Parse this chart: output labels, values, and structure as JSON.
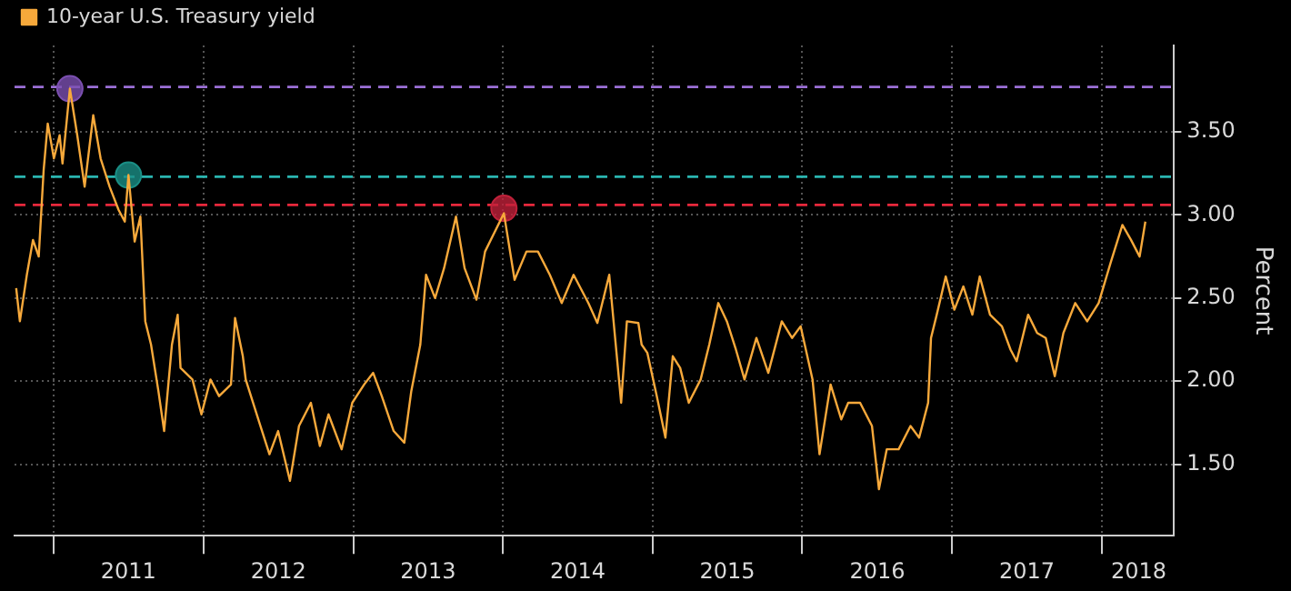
{
  "chart_data": {
    "type": "line",
    "ylabel": "Percent",
    "legend": "top left",
    "grid": true,
    "marker": "none",
    "line_style": "solid",
    "xlim": [
      "2010-09-27",
      "2018-06-26"
    ],
    "xticks": [
      {
        "value": "2011-01-01",
        "label": null
      },
      {
        "value": "2011-07-02",
        "label": "2011"
      },
      {
        "value": "2012-01-01",
        "label": null
      },
      {
        "value": "2012-07-02",
        "label": "2012"
      },
      {
        "value": "2013-01-01",
        "label": null
      },
      {
        "value": "2013-07-02",
        "label": "2013"
      },
      {
        "value": "2014-01-01",
        "label": null
      },
      {
        "value": "2014-07-02",
        "label": "2014"
      },
      {
        "value": "2015-01-01",
        "label": null
      },
      {
        "value": "2015-07-02",
        "label": "2015"
      },
      {
        "value": "2016-01-01",
        "label": null
      },
      {
        "value": "2016-07-02",
        "label": "2016"
      },
      {
        "value": "2017-01-01",
        "label": null
      },
      {
        "value": "2017-07-02",
        "label": "2017"
      },
      {
        "value": "2018-01-01",
        "label": null
      },
      {
        "value": "2018-04-01",
        "label": "2018"
      }
    ],
    "ylim": [
      1.07,
      4.02
    ],
    "yticks": [
      {
        "value": 1.5,
        "label": "1.50"
      },
      {
        "value": 2,
        "label": "2.00"
      },
      {
        "value": 2.5,
        "label": "2.50"
      },
      {
        "value": 3,
        "label": "3.00"
      },
      {
        "value": 3.5,
        "label": "3.50"
      }
    ],
    "ref_lines": [
      {
        "axis": "y",
        "value": 3.77,
        "color": "#9b6fd6",
        "line_style": "dashed"
      },
      {
        "axis": "y",
        "value": 3.23,
        "color": "#2ab5b0",
        "line_style": "dashed"
      },
      {
        "axis": "y",
        "value": 3.06,
        "color": "#e8283c",
        "line_style": "dashed"
      }
    ],
    "series": [
      {
        "name": "10-year U.S. Treasury yield",
        "color": "#f7a93b",
        "x": [
          "2010-10-01",
          "2010-10-10",
          "2010-10-27",
          "2010-11-11",
          "2010-11-25",
          "2010-12-07",
          "2010-12-17",
          "2011-01-01",
          "2011-01-15",
          "2011-01-22",
          "2011-02-09",
          "2011-02-27",
          "2011-03-17",
          "2011-04-07",
          "2011-04-25",
          "2011-05-17",
          "2011-06-08",
          "2011-06-23",
          "2011-07-02",
          "2011-07-17",
          "2011-07-31",
          "2011-08-12",
          "2011-08-26",
          "2011-09-13",
          "2011-09-27",
          "2011-10-16",
          "2011-10-30",
          "2011-11-06",
          "2011-12-05",
          "2011-12-27",
          "2012-01-18",
          "2012-02-08",
          "2012-03-08",
          "2012-03-18",
          "2012-04-06",
          "2012-04-13",
          "2012-05-19",
          "2012-06-10",
          "2012-07-01",
          "2012-07-30",
          "2012-08-21",
          "2012-09-19",
          "2012-10-11",
          "2012-11-01",
          "2012-12-03",
          "2012-12-29",
          "2013-01-27",
          "2013-02-18",
          "2013-03-11",
          "2013-04-09",
          "2013-05-05",
          "2013-05-22",
          "2013-06-13",
          "2013-06-27",
          "2013-07-19",
          "2013-08-10",
          "2013-09-08",
          "2013-09-29",
          "2013-10-28",
          "2013-11-18",
          "2013-12-10",
          "2014-01-03",
          "2014-01-29",
          "2014-02-27",
          "2014-03-27",
          "2014-04-25",
          "2014-05-24",
          "2014-06-22",
          "2014-07-28",
          "2014-08-19",
          "2014-09-17",
          "2014-10-16",
          "2014-10-30",
          "2014-11-27",
          "2014-12-05",
          "2014-12-19",
          "2015-01-11",
          "2015-02-01",
          "2015-02-19",
          "2015-03-09",
          "2015-03-30",
          "2015-04-28",
          "2015-05-19",
          "2015-06-10",
          "2015-07-01",
          "2015-07-23",
          "2015-08-13",
          "2015-09-11",
          "2015-10-10",
          "2015-11-12",
          "2015-12-07",
          "2015-12-28",
          "2016-01-26",
          "2016-02-12",
          "2016-03-10",
          "2016-04-05",
          "2016-04-22",
          "2016-05-21",
          "2016-06-19",
          "2016-07-06",
          "2016-07-25",
          "2016-08-23",
          "2016-09-21",
          "2016-10-12",
          "2016-11-03",
          "2016-11-10",
          "2016-11-24",
          "2016-12-16",
          "2017-01-06",
          "2017-01-28",
          "2017-02-19",
          "2017-03-09",
          "2017-04-03",
          "2017-05-02",
          "2017-05-23",
          "2017-06-07",
          "2017-07-05",
          "2017-07-27",
          "2017-08-17",
          "2017-09-08",
          "2017-09-29",
          "2017-10-28",
          "2017-11-26",
          "2017-12-24",
          "2018-01-22",
          "2018-02-20",
          "2018-03-13",
          "2018-04-03",
          "2018-04-17"
        ],
        "values": [
          2.56,
          2.36,
          2.64,
          2.85,
          2.75,
          3.27,
          3.55,
          3.34,
          3.48,
          3.31,
          3.76,
          3.48,
          3.17,
          3.6,
          3.34,
          3.17,
          3.03,
          2.96,
          3.24,
          2.84,
          2.99,
          2.36,
          2.22,
          1.94,
          1.7,
          2.22,
          2.4,
          2.08,
          2.01,
          1.8,
          2.01,
          1.91,
          1.98,
          2.38,
          2.15,
          2.01,
          1.73,
          1.56,
          1.7,
          1.4,
          1.73,
          1.87,
          1.61,
          1.8,
          1.59,
          1.87,
          1.98,
          2.05,
          1.91,
          1.7,
          1.63,
          1.94,
          2.22,
          2.64,
          2.5,
          2.68,
          2.99,
          2.68,
          2.49,
          2.78,
          2.89,
          3.01,
          2.61,
          2.78,
          2.78,
          2.64,
          2.47,
          2.64,
          2.47,
          2.35,
          2.64,
          1.87,
          2.36,
          2.35,
          2.22,
          2.17,
          1.91,
          1.66,
          2.15,
          2.08,
          1.87,
          2.01,
          2.22,
          2.47,
          2.36,
          2.19,
          2.01,
          2.26,
          2.05,
          2.36,
          2.26,
          2.33,
          2.01,
          1.56,
          1.98,
          1.77,
          1.87,
          1.87,
          1.73,
          1.35,
          1.59,
          1.59,
          1.73,
          1.66,
          1.87,
          2.26,
          2.4,
          2.63,
          2.43,
          2.57,
          2.4,
          2.63,
          2.4,
          2.33,
          2.19,
          2.12,
          2.4,
          2.29,
          2.26,
          2.03,
          2.29,
          2.47,
          2.36,
          2.47,
          2.71,
          2.94,
          2.85,
          2.75,
          2.96
        ]
      },
      {
        "type": "scatter",
        "marker": "circle",
        "colors": [
          "#7b4fb0",
          "#1a8f86",
          "#c0213a"
        ],
        "x": [
          "2011-02-09",
          "2011-07-02",
          "2014-01-03"
        ],
        "values": [
          3.76,
          3.24,
          3.04
        ]
      }
    ]
  }
}
